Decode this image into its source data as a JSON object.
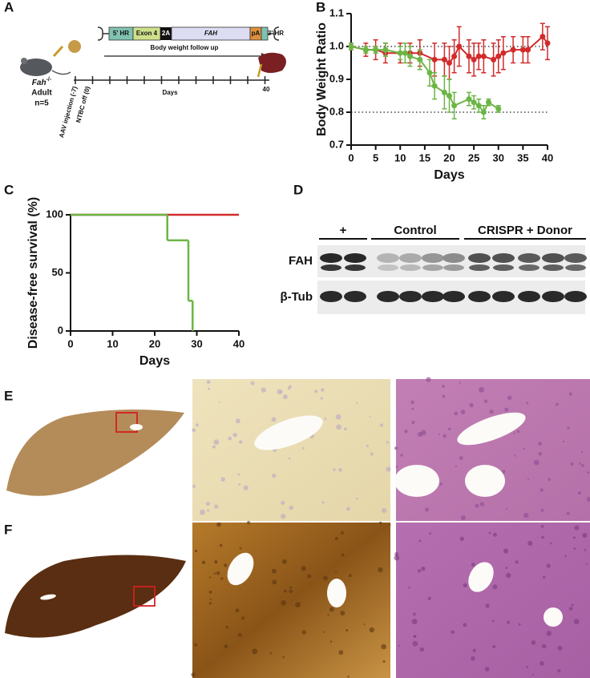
{
  "panel_labels": [
    "A",
    "B",
    "C",
    "D",
    "E",
    "F"
  ],
  "schematic": {
    "construct": [
      "5' HR",
      "Exon 4",
      "2A",
      "FAH",
      "pA",
      "3' HR"
    ],
    "follow_up": "Body weight follow up",
    "mouse": {
      "genotype": "Fah",
      "superscript": "-/-",
      "stage": "Adult",
      "n": "n=5"
    },
    "timeline": {
      "labels": [
        "AAV injection (-7)",
        "NTBC off (0)"
      ],
      "axis_label": "Days",
      "end": "40"
    }
  },
  "blot": {
    "groups": [
      "+",
      "Control",
      "CRISPR + Donor"
    ],
    "rows": [
      "FAH",
      "β-Tub"
    ]
  },
  "chart_data": [
    {
      "type": "line",
      "ylabel": "Body Weight Ratio",
      "xlabel": "Days",
      "xlim": [
        0,
        40
      ],
      "ylim": [
        0.7,
        1.1
      ],
      "xticks": [
        0,
        5,
        10,
        15,
        20,
        25,
        30,
        35,
        40
      ],
      "yticks": [
        0.7,
        0.8,
        0.9,
        {
          "value": 1.0,
          "label": "1.0"
        },
        1.1
      ],
      "reference_lines": [
        1.0,
        0.8
      ],
      "series": [
        {
          "color": "#d22b2b",
          "x": [
            0,
            3,
            5,
            7,
            10,
            12,
            14,
            17,
            19,
            20,
            21,
            22,
            24,
            25,
            26,
            27,
            29,
            30,
            31,
            33,
            35,
            36,
            39,
            40
          ],
          "values": [
            1.0,
            0.99,
            0.99,
            0.98,
            0.98,
            0.98,
            0.98,
            0.96,
            0.96,
            0.95,
            0.97,
            1.0,
            0.97,
            0.96,
            0.97,
            0.97,
            0.96,
            0.97,
            0.98,
            0.99,
            0.99,
            0.99,
            1.03,
            1.01
          ],
          "errors": [
            0.01,
            0.02,
            0.03,
            0.03,
            0.03,
            0.03,
            0.04,
            0.05,
            0.05,
            0.05,
            0.05,
            0.06,
            0.05,
            0.05,
            0.04,
            0.05,
            0.05,
            0.05,
            0.05,
            0.04,
            0.04,
            0.04,
            0.04,
            0.05
          ]
        },
        {
          "color": "#6cb545",
          "x": [
            0,
            3,
            5,
            7,
            10,
            11,
            12,
            14,
            16,
            17,
            19,
            20,
            21,
            24,
            25,
            26,
            27,
            28,
            30
          ],
          "values": [
            1.0,
            0.99,
            0.99,
            0.99,
            0.98,
            0.98,
            0.97,
            0.96,
            0.92,
            0.88,
            0.86,
            0.85,
            0.82,
            0.84,
            0.83,
            0.82,
            0.8,
            0.83,
            0.81
          ],
          "errors": [
            0.01,
            0.01,
            0.01,
            0.02,
            0.02,
            0.03,
            0.03,
            0.03,
            0.04,
            0.04,
            0.05,
            0.05,
            0.04,
            0.02,
            0.02,
            0.02,
            0.02,
            0.01,
            0.01
          ]
        }
      ]
    },
    {
      "type": "step",
      "ylabel": "Disease-free survival (%)",
      "xlabel": "Days",
      "xlim": [
        0,
        40
      ],
      "ylim": [
        0,
        100
      ],
      "xticks": [
        0,
        10,
        20,
        30,
        40
      ],
      "yticks": [
        0,
        50,
        100
      ],
      "series": [
        {
          "color": "#d22b2b",
          "x": [
            0,
            40
          ],
          "values": [
            100,
            100
          ]
        },
        {
          "color": "#6cb545",
          "x": [
            0,
            23,
            28,
            29
          ],
          "values": [
            100,
            78,
            26,
            0
          ]
        }
      ]
    }
  ]
}
